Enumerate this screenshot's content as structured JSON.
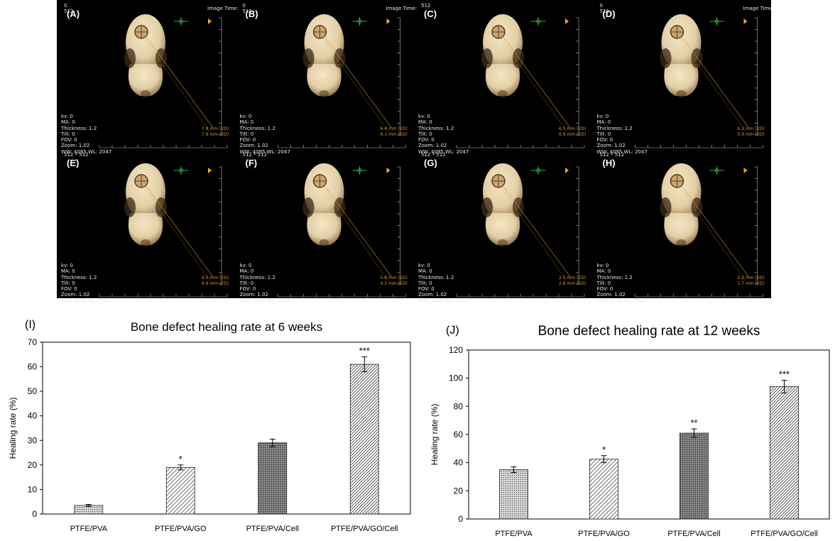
{
  "ct_panels": [
    {
      "label": "(A)",
      "top_text": "0\n512",
      "image_time": "Image Time:",
      "meas1": "7.8 mm (2D)",
      "meas2": "7.9 mm (2D)"
    },
    {
      "label": "(B)",
      "top_text": "0\n512",
      "image_time": "Image Time:",
      "meas1": "6.4 mm (2D)",
      "meas2": "6.1 mm (2D)"
    },
    {
      "label": "(C)",
      "top_text": "512",
      "image_time": "",
      "meas1": "6.5 mm (2D)",
      "meas2": "6.9 mm (2D)"
    },
    {
      "label": "(D)",
      "top_text": "0\n512",
      "image_time": "Image Time:",
      "meas1": "6.2 mm (2D)",
      "meas2": "5.9 mm (2D)"
    },
    {
      "label": "(E)",
      "top_text": "512 * 512",
      "image_time": "",
      "meas1": "6.0 mm (2D)",
      "meas2": "6.9 mm (2D)"
    },
    {
      "label": "(F)",
      "top_text": "512 * 512",
      "image_time": "",
      "meas1": "5.6 mm (2D)",
      "meas2": "4.3 mm (2D)"
    },
    {
      "label": "(G)",
      "top_text": "512 * 512",
      "image_time": "",
      "meas1": "2.5 mm (2D)",
      "meas2": "2.8 mm (2D)"
    },
    {
      "label": "(H)",
      "top_text": "512 * 512",
      "image_time": "",
      "meas1": "2.2 mm (2D)",
      "meas2": "1.7 mm (2D)"
    }
  ],
  "ct_meta": "kv: 0\nMA: 0\nThickness: 1.2\nTilt: 0\nFOV: 0\nZoom: 1.02\nWW: 4095 WL: 2047",
  "colors": {
    "bone": "#e3cfa6",
    "bone_shadow": "#8a6b43",
    "orange": "#d89a35",
    "green": "#3fae3f"
  },
  "chart_data": [
    {
      "type": "bar",
      "panel_label": "(I)",
      "title": "Bone defect healing rate at 6 weeks",
      "xlabel": "",
      "ylabel": "Healing rate (%)",
      "categories": [
        "PTFE/PVA",
        "PTFE/PVA/GO",
        "PTFE/PVA/Cell",
        "PTFE/PVA/GO/Cell"
      ],
      "values": [
        3.5,
        19,
        29,
        61
      ],
      "errors": [
        0.4,
        1.0,
        1.5,
        3.0
      ],
      "significance": [
        "",
        "*",
        "",
        "***"
      ],
      "patterns": [
        "dots",
        "diag",
        "dense",
        "diag-dense"
      ],
      "ylim": [
        0,
        70
      ],
      "yticks": [
        0,
        10,
        20,
        30,
        40,
        50,
        60,
        70
      ]
    },
    {
      "type": "bar",
      "panel_label": "(J)",
      "title": "Bone defect healing rate at 12 weeks",
      "xlabel": "",
      "ylabel": "Healing rate (%)",
      "categories": [
        "PTFE/PVA",
        "PTFE/PVA/GO",
        "PTFE/PVA/Cell",
        "PTFE/PVA/GO/Cell"
      ],
      "values": [
        35,
        42.5,
        61,
        94
      ],
      "errors": [
        2,
        2.5,
        3,
        4.5
      ],
      "significance": [
        "",
        "*",
        "**",
        "***"
      ],
      "patterns": [
        "dots",
        "diag",
        "dense",
        "diag-dense"
      ],
      "ylim": [
        0,
        120
      ],
      "yticks": [
        0,
        20,
        40,
        60,
        80,
        100,
        120
      ]
    }
  ]
}
